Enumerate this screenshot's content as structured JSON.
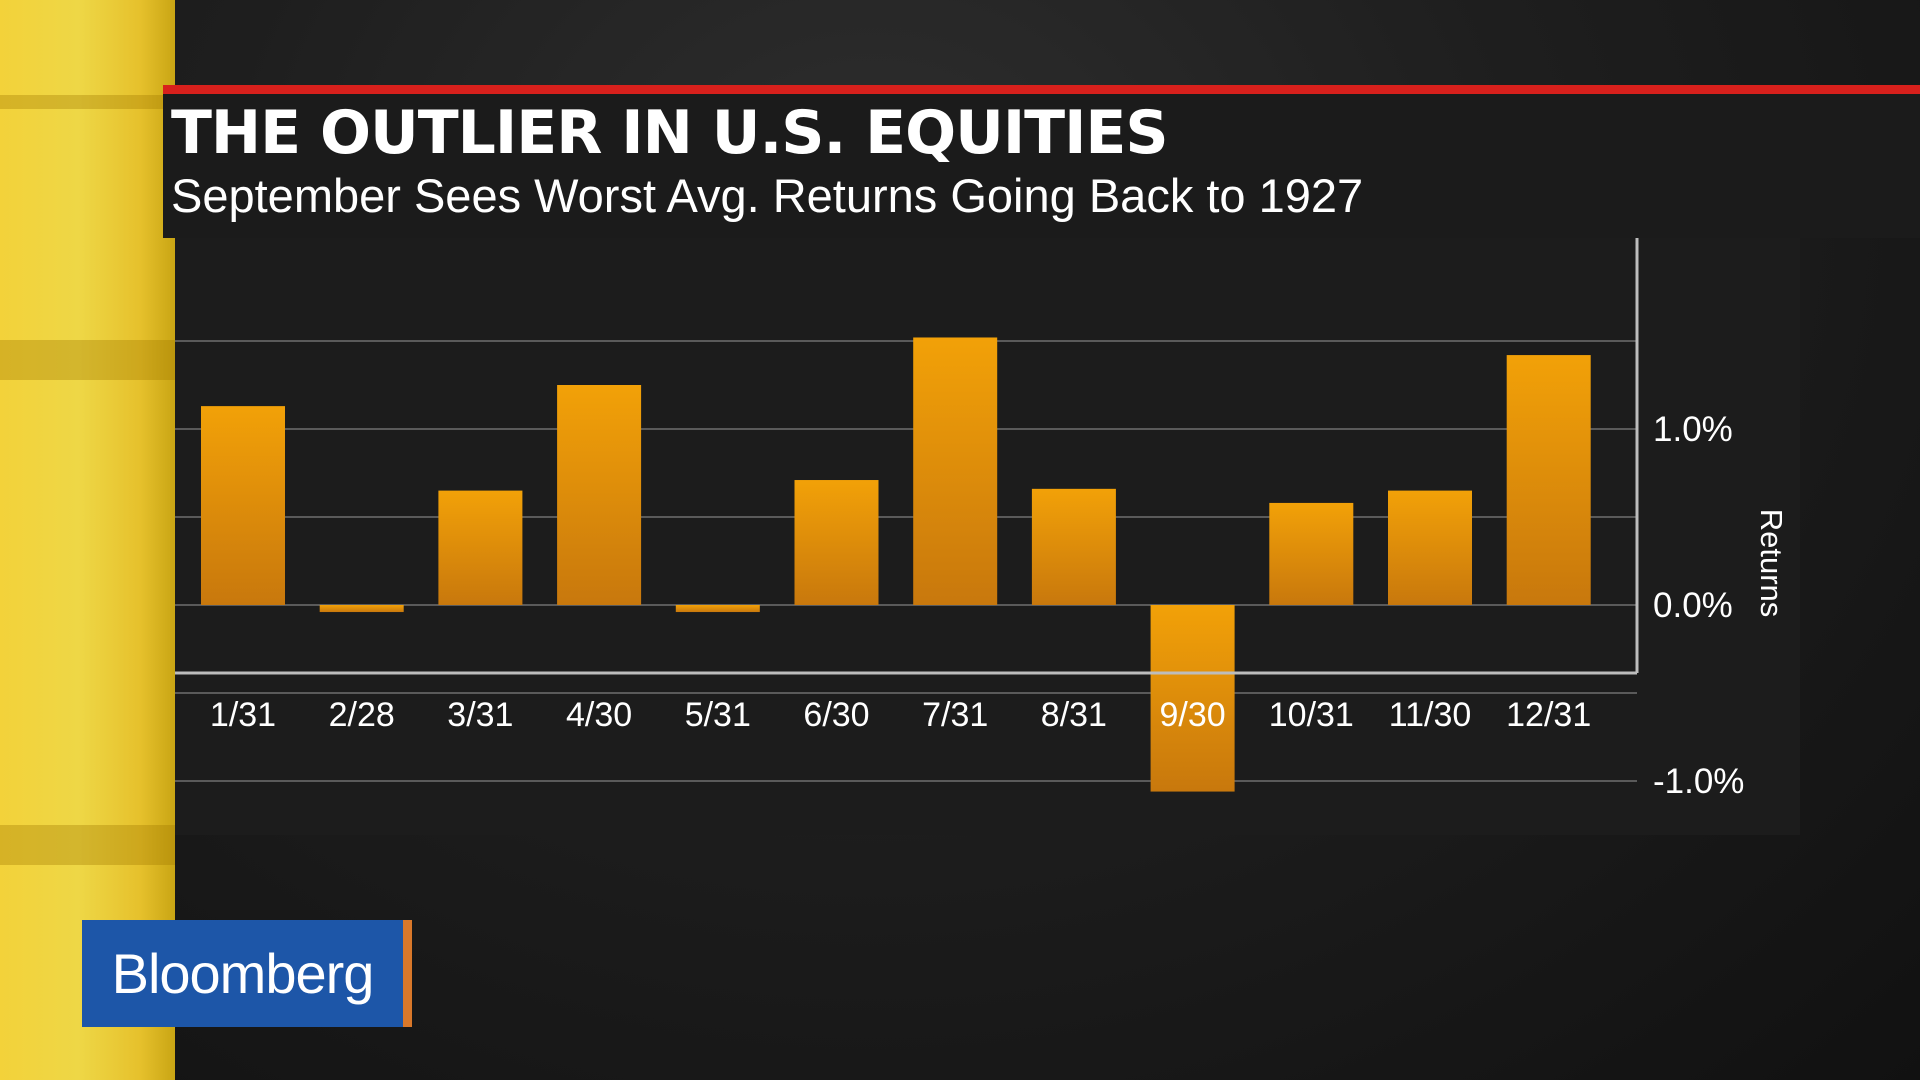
{
  "header": {
    "title": "THE OUTLIER IN U.S. EQUITIES",
    "subtitle": "September Sees Worst Avg. Returns Going Back to 1927"
  },
  "brand": {
    "name": "Bloomberg",
    "color": "#1d56a8",
    "accent": "#d9782a"
  },
  "colors": {
    "bar_top": "#f2a108",
    "bar_bottom": "#c8780d",
    "header_rule": "#d8201c"
  },
  "chart_data": {
    "type": "bar",
    "categories": [
      "1/31",
      "2/28",
      "3/31",
      "4/30",
      "5/31",
      "6/30",
      "7/31",
      "8/31",
      "9/30",
      "10/31",
      "11/30",
      "12/31"
    ],
    "values": [
      1.13,
      -0.04,
      0.65,
      1.25,
      -0.04,
      0.71,
      1.52,
      0.66,
      -1.06,
      0.58,
      0.65,
      1.42
    ],
    "title": "THE OUTLIER IN U.S. EQUITIES",
    "subtitle": "September Sees Worst Avg. Returns Going Back to 1927",
    "ylabel": "Returns",
    "yticks": [
      1.0,
      0.0,
      -1.0
    ],
    "ytick_labels": [
      "1.0%",
      "0.0%",
      "-1.0%"
    ],
    "ylim": [
      -1.3,
      2.0
    ],
    "grid": true,
    "y_axis_side": "right"
  }
}
